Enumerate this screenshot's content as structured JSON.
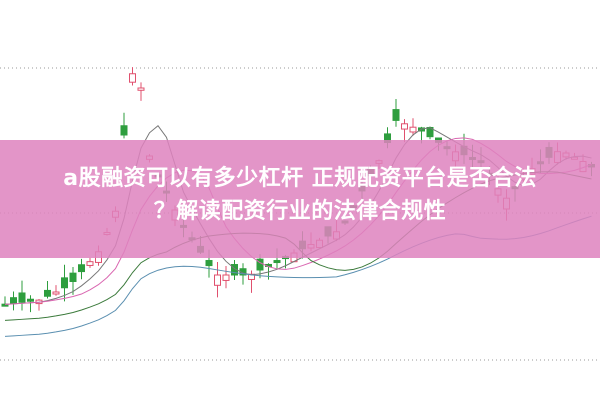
{
  "article": {
    "title_line1": "a股融资可以有多少杠杆 正规配资平台是否合法",
    "title_line2": "？解读配资行业的法律合规性"
  },
  "colors": {
    "banner": "#de82be",
    "up_candle": "#e0506e",
    "down_candle": "#2e9e3e",
    "ma_lines": [
      "#777777",
      "#d966b0",
      "#3b7a3b",
      "#5a8fb0"
    ]
  },
  "icons": {
    "background": "candlestick-chart-image"
  }
}
